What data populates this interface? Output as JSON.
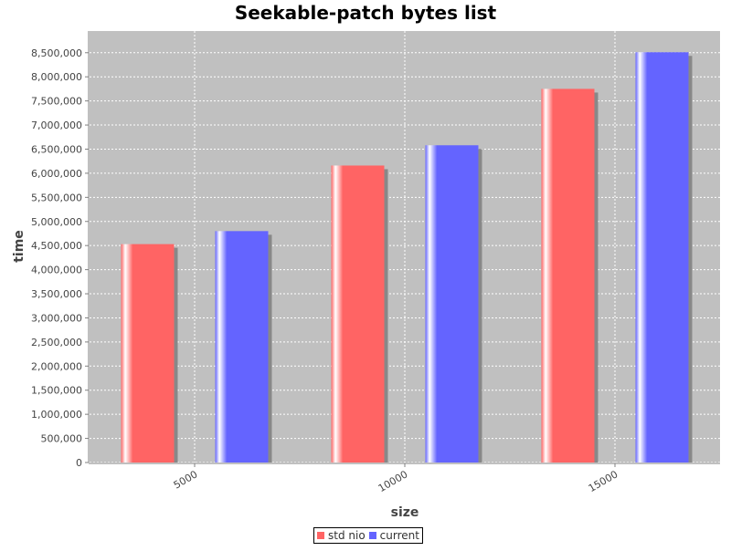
{
  "chart_data": {
    "type": "bar",
    "title": "Seekable-patch bytes list",
    "xlabel": "size",
    "ylabel": "time",
    "categories": [
      "5000",
      "10000",
      "15000"
    ],
    "series": [
      {
        "name": "std nio",
        "values": [
          4530000,
          6160000,
          7750000
        ],
        "color": "#ff6464"
      },
      {
        "name": "current",
        "values": [
          4800000,
          6580000,
          8510000
        ],
        "color": "#6464ff"
      }
    ],
    "ylim": [
      0,
      8950000
    ],
    "yticks": [
      0,
      500000,
      1000000,
      1500000,
      2000000,
      2500000,
      3000000,
      3500000,
      4000000,
      4500000,
      5000000,
      5500000,
      6000000,
      6500000,
      7000000,
      7500000,
      8000000,
      8500000
    ],
    "ytick_labels": [
      "0",
      "500,000",
      "1,000,000",
      "1,500,000",
      "2,000,000",
      "2,500,000",
      "3,000,000",
      "3,500,000",
      "4,000,000",
      "4,500,000",
      "5,000,000",
      "5,500,000",
      "6,000,000",
      "6,500,000",
      "7,000,000",
      "7,500,000",
      "8,000,000",
      "8,500,000"
    ],
    "grid": true,
    "legend_position": "bottom",
    "plot_background": "#c0c0c0"
  }
}
